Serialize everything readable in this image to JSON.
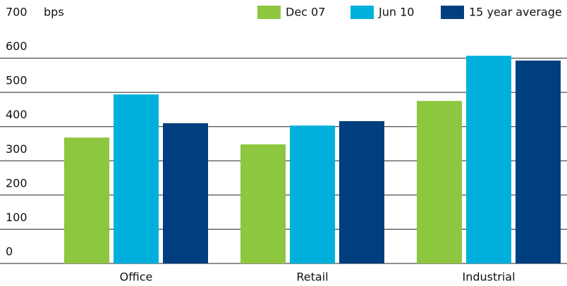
{
  "chart_data": {
    "type": "bar",
    "y_unit": "bps",
    "categories": [
      "Office",
      "Retail",
      "Industrial"
    ],
    "series": [
      {
        "name": "Dec 07",
        "color": "#8dc63f",
        "values": [
          368,
          348,
          475
        ]
      },
      {
        "name": "Jun 10",
        "color": "#00b0dc",
        "values": [
          494,
          403,
          607
        ]
      },
      {
        "name": "15 year average",
        "color": "#003f7f",
        "values": [
          410,
          416,
          593
        ]
      }
    ],
    "ylim": [
      0,
      700
    ],
    "yticks": [
      0,
      100,
      200,
      300,
      400,
      500,
      600,
      700
    ],
    "grid": true,
    "legend": "top-right"
  }
}
